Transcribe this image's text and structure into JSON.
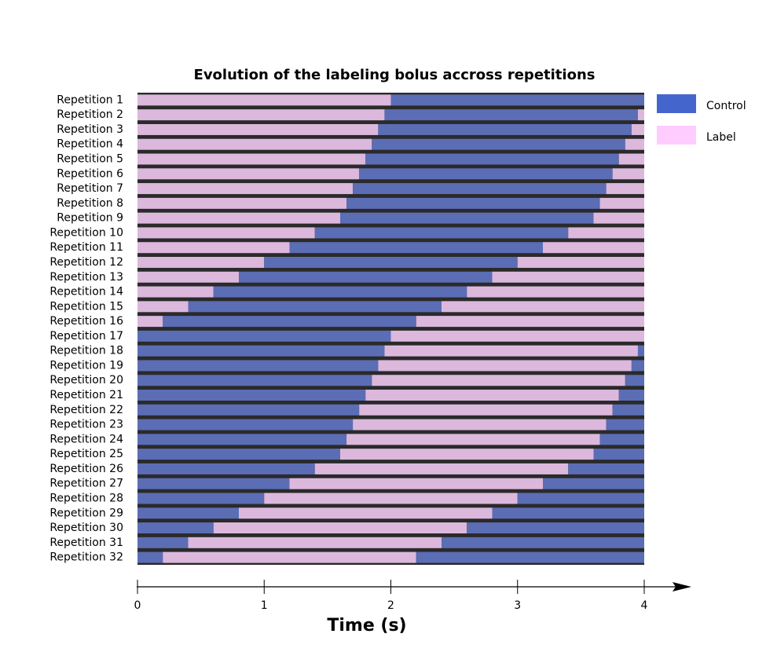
{
  "chart_data": {
    "type": "timeline",
    "title": "Evolution of the labeling bolus accross repetitions",
    "xlabel": "Time (s)",
    "xlim": [
      0,
      4
    ],
    "xticks": [
      0,
      1,
      2,
      3,
      4
    ],
    "series": [
      {
        "name": "Control",
        "color": "#5b6db5",
        "legend_color": "#4466cc"
      },
      {
        "name": "Label",
        "color": "#dcb8dc",
        "legend_color": "#ffccff"
      }
    ],
    "categories": [
      "Repetition 1",
      "Repetition 2",
      "Repetition 3",
      "Repetition 4",
      "Repetition 5",
      "Repetition 6",
      "Repetition 7",
      "Repetition 8",
      "Repetition 9",
      "Repetition 10",
      "Repetition 11",
      "Repetition 12",
      "Repetition 13",
      "Repetition 14",
      "Repetition 15",
      "Repetition 16",
      "Repetition 17",
      "Repetition 18",
      "Repetition 19",
      "Repetition 20",
      "Repetition 21",
      "Repetition 22",
      "Repetition 23",
      "Repetition 24",
      "Repetition 25",
      "Repetition 26",
      "Repetition 27",
      "Repetition 28",
      "Repetition 29",
      "Repetition 30",
      "Repetition 31",
      "Repetition 32"
    ],
    "first_series": [
      1,
      1,
      1,
      1,
      1,
      1,
      1,
      1,
      1,
      1,
      1,
      1,
      1,
      1,
      1,
      1,
      0,
      0,
      0,
      0,
      0,
      0,
      0,
      0,
      0,
      0,
      0,
      0,
      0,
      0,
      0,
      0
    ],
    "segments": [
      [
        2,
        2
      ],
      [
        1.95,
        2,
        0.05
      ],
      [
        1.9,
        2,
        0.1
      ],
      [
        1.85,
        2,
        0.15
      ],
      [
        1.8,
        2,
        0.2
      ],
      [
        1.75,
        2,
        0.25
      ],
      [
        1.7,
        2,
        0.3
      ],
      [
        1.65,
        2,
        0.35
      ],
      [
        1.6,
        2,
        0.4
      ],
      [
        1.4,
        2,
        0.6
      ],
      [
        1.2,
        2,
        0.8
      ],
      [
        1.0,
        2,
        1.0
      ],
      [
        0.8,
        2,
        1.2
      ],
      [
        0.6,
        2,
        1.4
      ],
      [
        0.4,
        2,
        1.6
      ],
      [
        0.2,
        2,
        1.8
      ],
      [
        2,
        2
      ],
      [
        1.95,
        2,
        0.05
      ],
      [
        1.9,
        2,
        0.1
      ],
      [
        1.85,
        2,
        0.15
      ],
      [
        1.8,
        2,
        0.2
      ],
      [
        1.75,
        2,
        0.25
      ],
      [
        1.7,
        2,
        0.3
      ],
      [
        1.65,
        2,
        0.35
      ],
      [
        1.6,
        2,
        0.4
      ],
      [
        1.4,
        2,
        0.6
      ],
      [
        1.2,
        2,
        0.8
      ],
      [
        1.0,
        2,
        1.0
      ],
      [
        0.8,
        2,
        1.2
      ],
      [
        0.6,
        2,
        1.4
      ],
      [
        0.4,
        2,
        1.6
      ],
      [
        0.2,
        2,
        1.8
      ]
    ]
  }
}
